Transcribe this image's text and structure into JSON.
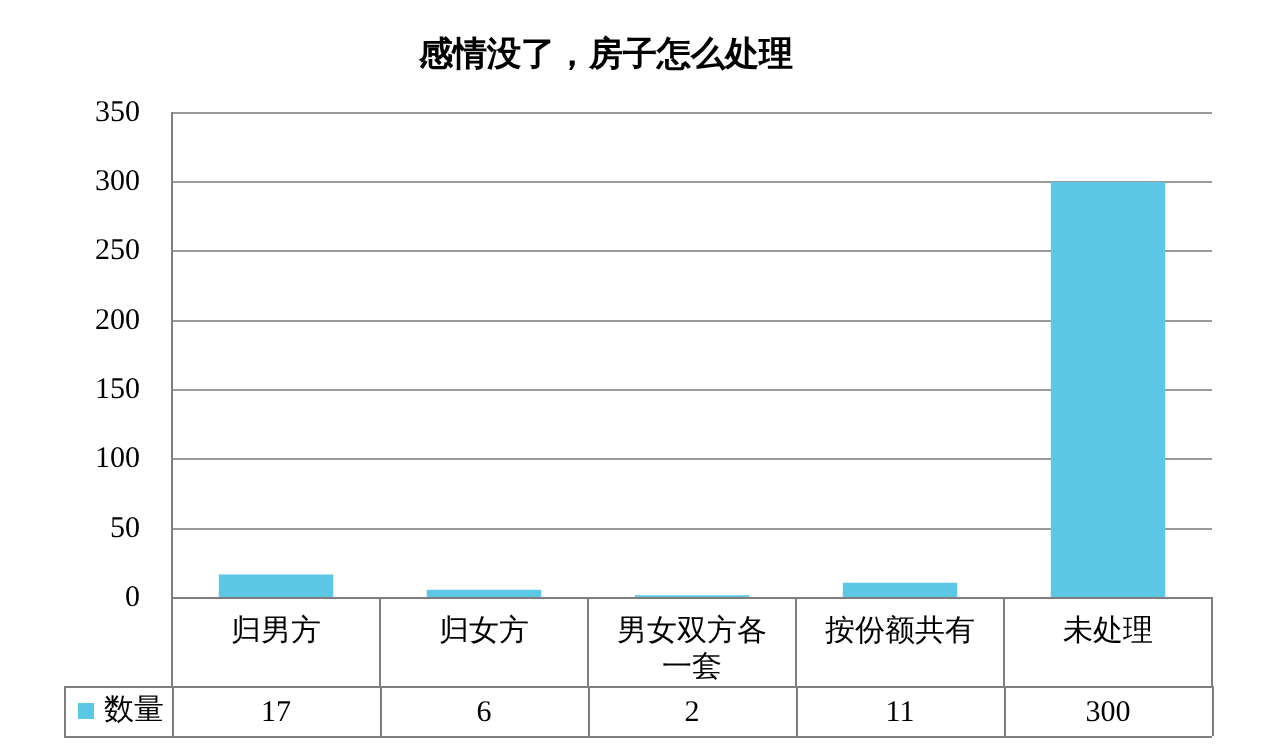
{
  "chart_data": {
    "type": "bar",
    "title": "感情没了，房子怎么处理",
    "categories": [
      "归男方",
      "归女方",
      "男女双方各一套",
      "按份额共有",
      "未处理"
    ],
    "series": [
      {
        "name": "数量",
        "color": "#5cc8e6",
        "values": [
          17,
          6,
          2,
          11,
          300
        ]
      }
    ],
    "ylim": [
      0,
      350
    ],
    "yticks": [
      0,
      50,
      100,
      150,
      200,
      250,
      300,
      350
    ],
    "grid": "y",
    "legend": "bottom",
    "data_labels": true
  }
}
